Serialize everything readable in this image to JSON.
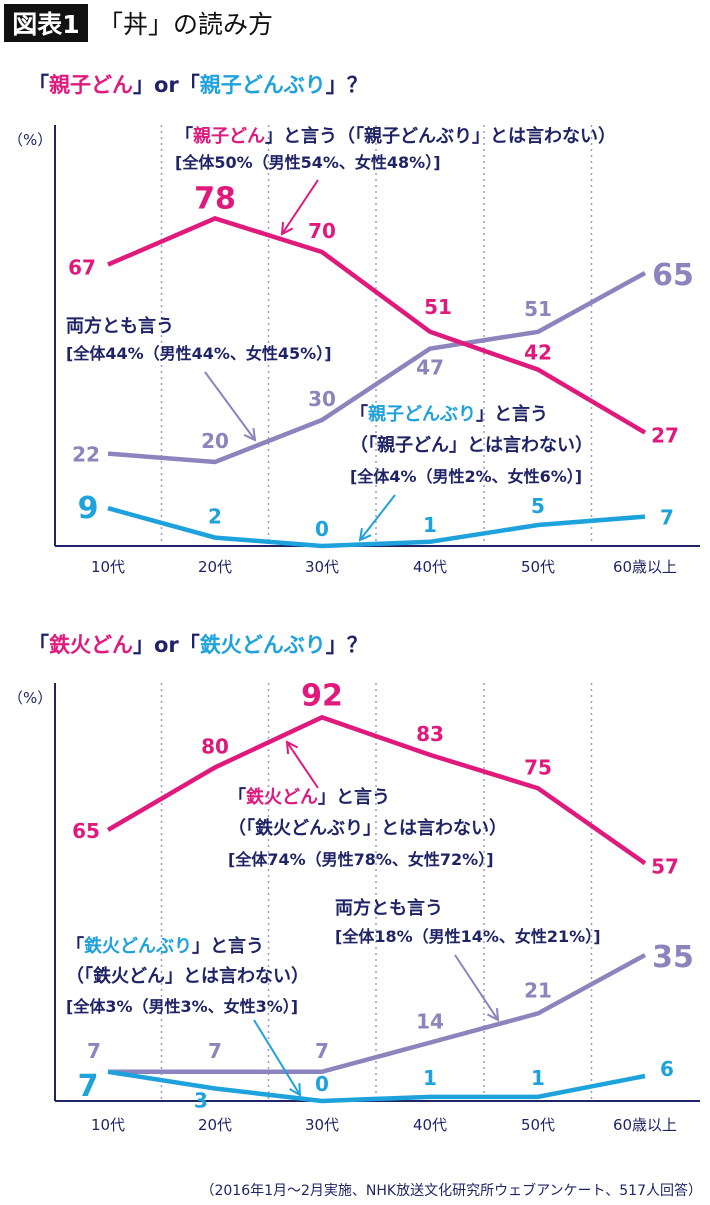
{
  "header": {
    "badge": "図表1",
    "title": "「丼」の読み方"
  },
  "colors": {
    "pink": "#e0197d",
    "purple": "#8b84bd",
    "cyan": "#1ea2dc",
    "navy": "#1f2466"
  },
  "footer": "（2016年1月～2月実施、NHK放送文化研究所ウェブアンケート、517人回答）",
  "chart_data": [
    {
      "type": "line",
      "title_parts": [
        {
          "text": "「",
          "color": "navy"
        },
        {
          "text": "親子どん",
          "color": "pink"
        },
        {
          "text": "」or「",
          "color": "navy"
        },
        {
          "text": "親子どんぶり",
          "color": "cyan"
        },
        {
          "text": "」？",
          "color": "navy"
        }
      ],
      "ylabel": "（%）",
      "categories": [
        "10代",
        "20代",
        "30代",
        "40代",
        "50代",
        "60歳以上"
      ],
      "ylim": [
        0,
        100
      ],
      "grid": "vertical-dotted",
      "series": [
        {
          "key": "pink",
          "values": [
            67,
            78,
            70,
            51,
            42,
            27
          ]
        },
        {
          "key": "purple",
          "values": [
            22,
            20,
            30,
            47,
            51,
            65
          ]
        },
        {
          "key": "cyan",
          "values": [
            9,
            2,
            0,
            1,
            5,
            7
          ]
        }
      ],
      "annotations": [
        {
          "series": "pink",
          "lines": [
            [
              {
                "text": "「",
                "color": "navy"
              },
              {
                "text": "親子どん",
                "color": "pink"
              },
              {
                "text": "」と言う（「親子どんぶり」とは言わない）",
                "color": "navy"
              }
            ],
            [
              {
                "text": "[全体50%（男性54%、女性48%）]",
                "color": "navy"
              }
            ]
          ]
        },
        {
          "series": "purple",
          "lines": [
            [
              {
                "text": "両方とも言う",
                "color": "navy"
              }
            ],
            [
              {
                "text": "[全体44%（男性44%、女性45%）]",
                "color": "navy"
              }
            ]
          ]
        },
        {
          "series": "cyan",
          "lines": [
            [
              {
                "text": "「",
                "color": "navy"
              },
              {
                "text": "親子どんぶり",
                "color": "cyan"
              },
              {
                "text": "」と言う",
                "color": "navy"
              }
            ],
            [
              {
                "text": "（「親子どん」とは言わない）",
                "color": "navy"
              }
            ],
            [
              {
                "text": "[全体4%（男性2%、女性6%）]",
                "color": "navy"
              }
            ]
          ]
        }
      ]
    },
    {
      "type": "line",
      "title_parts": [
        {
          "text": "「",
          "color": "navy"
        },
        {
          "text": "鉄火どん",
          "color": "pink"
        },
        {
          "text": "」or「",
          "color": "navy"
        },
        {
          "text": "鉄火どんぶり",
          "color": "cyan"
        },
        {
          "text": "」？",
          "color": "navy"
        }
      ],
      "ylabel": "（%）",
      "categories": [
        "10代",
        "20代",
        "30代",
        "40代",
        "50代",
        "60歳以上"
      ],
      "ylim": [
        0,
        100
      ],
      "grid": "vertical-dotted",
      "series": [
        {
          "key": "pink",
          "values": [
            65,
            80,
            92,
            83,
            75,
            57
          ]
        },
        {
          "key": "purple",
          "values": [
            7,
            7,
            7,
            14,
            21,
            35
          ]
        },
        {
          "key": "cyan",
          "values": [
            7,
            3,
            0,
            1,
            1,
            6
          ]
        }
      ],
      "annotations": [
        {
          "series": "pink",
          "lines": [
            [
              {
                "text": "「",
                "color": "navy"
              },
              {
                "text": "鉄火どん",
                "color": "pink"
              },
              {
                "text": "」と言う",
                "color": "navy"
              }
            ],
            [
              {
                "text": "（「鉄火どんぶり」とは言わない）",
                "color": "navy"
              }
            ],
            [
              {
                "text": "[全体74%（男性78%、女性72%）]",
                "color": "navy"
              }
            ]
          ]
        },
        {
          "series": "purple",
          "lines": [
            [
              {
                "text": "両方とも言う",
                "color": "navy"
              }
            ],
            [
              {
                "text": "[全体18%（男性14%、女性21%）]",
                "color": "navy"
              }
            ]
          ]
        },
        {
          "series": "cyan",
          "lines": [
            [
              {
                "text": "「",
                "color": "navy"
              },
              {
                "text": "鉄火どんぶり",
                "color": "cyan"
              },
              {
                "text": "」と言う",
                "color": "navy"
              }
            ],
            [
              {
                "text": "（「鉄火どん」とは言わない）",
                "color": "navy"
              }
            ],
            [
              {
                "text": "[全体3%（男性3%、女性3%）]",
                "color": "navy"
              }
            ]
          ]
        }
      ]
    }
  ]
}
